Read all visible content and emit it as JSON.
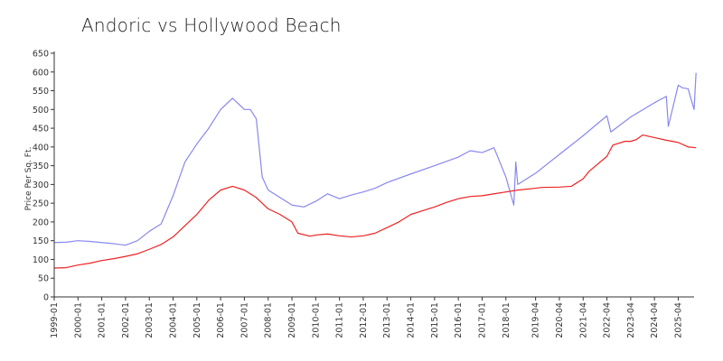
{
  "chart_data": {
    "type": "line",
    "title": "Andoric vs Hollywood Beach",
    "xlabel": "",
    "ylabel": "Price Per Sq. Ft.",
    "ylim": [
      0,
      650
    ],
    "yticks": [
      0,
      50,
      100,
      150,
      200,
      250,
      300,
      350,
      400,
      450,
      500,
      550,
      600,
      650
    ],
    "xlim": [
      "1999-01",
      "2025-12"
    ],
    "xticks": [
      "1999-01",
      "2000-01",
      "2001-01",
      "2002-01",
      "2003-01",
      "2004-01",
      "2005-01",
      "2006-01",
      "2007-01",
      "2008-01",
      "2009-01",
      "2010-01",
      "2011-01",
      "2012-01",
      "2013-01",
      "2014-01",
      "2015-01",
      "2016-01",
      "2017-01",
      "2018-01",
      "2019-04",
      "2020-04",
      "2021-04",
      "2022-04",
      "2023-04",
      "2024-04",
      "2025-04"
    ],
    "grid": false,
    "legend": "none",
    "series": [
      {
        "color": "#8888ee",
        "points": [
          [
            "1999-01",
            145
          ],
          [
            "1999-07",
            146
          ],
          [
            "2000-01",
            150
          ],
          [
            "2000-07",
            148
          ],
          [
            "2001-01",
            145
          ],
          [
            "2001-07",
            142
          ],
          [
            "2002-01",
            138
          ],
          [
            "2002-07",
            150
          ],
          [
            "2003-01",
            175
          ],
          [
            "2003-07",
            195
          ],
          [
            "2004-01",
            270
          ],
          [
            "2004-07",
            360
          ],
          [
            "2005-01",
            408
          ],
          [
            "2005-07",
            450
          ],
          [
            "2006-01",
            500
          ],
          [
            "2006-07",
            530
          ],
          [
            "2007-01",
            500
          ],
          [
            "2007-04",
            500
          ],
          [
            "2007-07",
            475
          ],
          [
            "2007-10",
            320
          ],
          [
            "2008-01",
            285
          ],
          [
            "2008-07",
            265
          ],
          [
            "2009-01",
            245
          ],
          [
            "2009-07",
            240
          ],
          [
            "2010-01",
            255
          ],
          [
            "2010-07",
            275
          ],
          [
            "2011-01",
            262
          ],
          [
            "2011-07",
            272
          ],
          [
            "2012-01",
            280
          ],
          [
            "2012-07",
            290
          ],
          [
            "2013-01",
            305
          ],
          [
            "2014-01",
            328
          ],
          [
            "2015-01",
            350
          ],
          [
            "2016-01",
            373
          ],
          [
            "2016-07",
            390
          ],
          [
            "2017-01",
            385
          ],
          [
            "2017-07",
            398
          ],
          [
            "2018-01",
            320
          ],
          [
            "2018-05",
            245
          ],
          [
            "2018-06",
            360
          ],
          [
            "2018-07",
            300
          ],
          [
            "2019-04",
            330
          ],
          [
            "2020-04",
            380
          ],
          [
            "2021-04",
            430
          ],
          [
            "2022-01",
            470
          ],
          [
            "2022-04",
            483
          ],
          [
            "2022-06",
            440
          ],
          [
            "2023-04",
            480
          ],
          [
            "2024-04",
            518
          ],
          [
            "2024-10",
            535
          ],
          [
            "2024-11",
            455
          ],
          [
            "2025-04",
            565
          ],
          [
            "2025-06",
            558
          ],
          [
            "2025-09",
            555
          ],
          [
            "2025-12",
            500
          ],
          [
            "2026-01",
            598
          ]
        ]
      },
      {
        "color": "#ee2222",
        "points": [
          [
            "1999-01",
            77
          ],
          [
            "1999-07",
            78
          ],
          [
            "2000-01",
            85
          ],
          [
            "2000-07",
            90
          ],
          [
            "2001-01",
            97
          ],
          [
            "2001-07",
            102
          ],
          [
            "2002-01",
            108
          ],
          [
            "2002-07",
            115
          ],
          [
            "2003-01",
            127
          ],
          [
            "2003-07",
            140
          ],
          [
            "2004-01",
            160
          ],
          [
            "2004-07",
            190
          ],
          [
            "2005-01",
            220
          ],
          [
            "2005-07",
            258
          ],
          [
            "2006-01",
            285
          ],
          [
            "2006-07",
            295
          ],
          [
            "2007-01",
            285
          ],
          [
            "2007-07",
            265
          ],
          [
            "2008-01",
            235
          ],
          [
            "2008-07",
            220
          ],
          [
            "2009-01",
            200
          ],
          [
            "2009-04",
            170
          ],
          [
            "2009-10",
            162
          ],
          [
            "2010-01",
            165
          ],
          [
            "2010-07",
            168
          ],
          [
            "2011-01",
            163
          ],
          [
            "2011-07",
            160
          ],
          [
            "2012-01",
            163
          ],
          [
            "2012-07",
            170
          ],
          [
            "2013-01",
            185
          ],
          [
            "2013-07",
            200
          ],
          [
            "2014-01",
            220
          ],
          [
            "2014-07",
            230
          ],
          [
            "2015-01",
            240
          ],
          [
            "2015-07",
            252
          ],
          [
            "2016-01",
            262
          ],
          [
            "2016-07",
            268
          ],
          [
            "2017-01",
            270
          ],
          [
            "2017-07",
            275
          ],
          [
            "2018-01",
            280
          ],
          [
            "2018-07",
            285
          ],
          [
            "2019-04",
            290
          ],
          [
            "2019-07",
            292
          ],
          [
            "2020-04",
            293
          ],
          [
            "2020-10",
            295
          ],
          [
            "2021-04",
            315
          ],
          [
            "2021-07",
            335
          ],
          [
            "2022-04",
            375
          ],
          [
            "2022-07",
            405
          ],
          [
            "2023-01",
            415
          ],
          [
            "2023-04",
            415
          ],
          [
            "2023-07",
            420
          ],
          [
            "2023-10",
            432
          ],
          [
            "2024-04",
            425
          ],
          [
            "2024-10",
            418
          ],
          [
            "2025-04",
            412
          ],
          [
            "2025-09",
            400
          ],
          [
            "2026-01",
            398
          ]
        ]
      }
    ]
  }
}
